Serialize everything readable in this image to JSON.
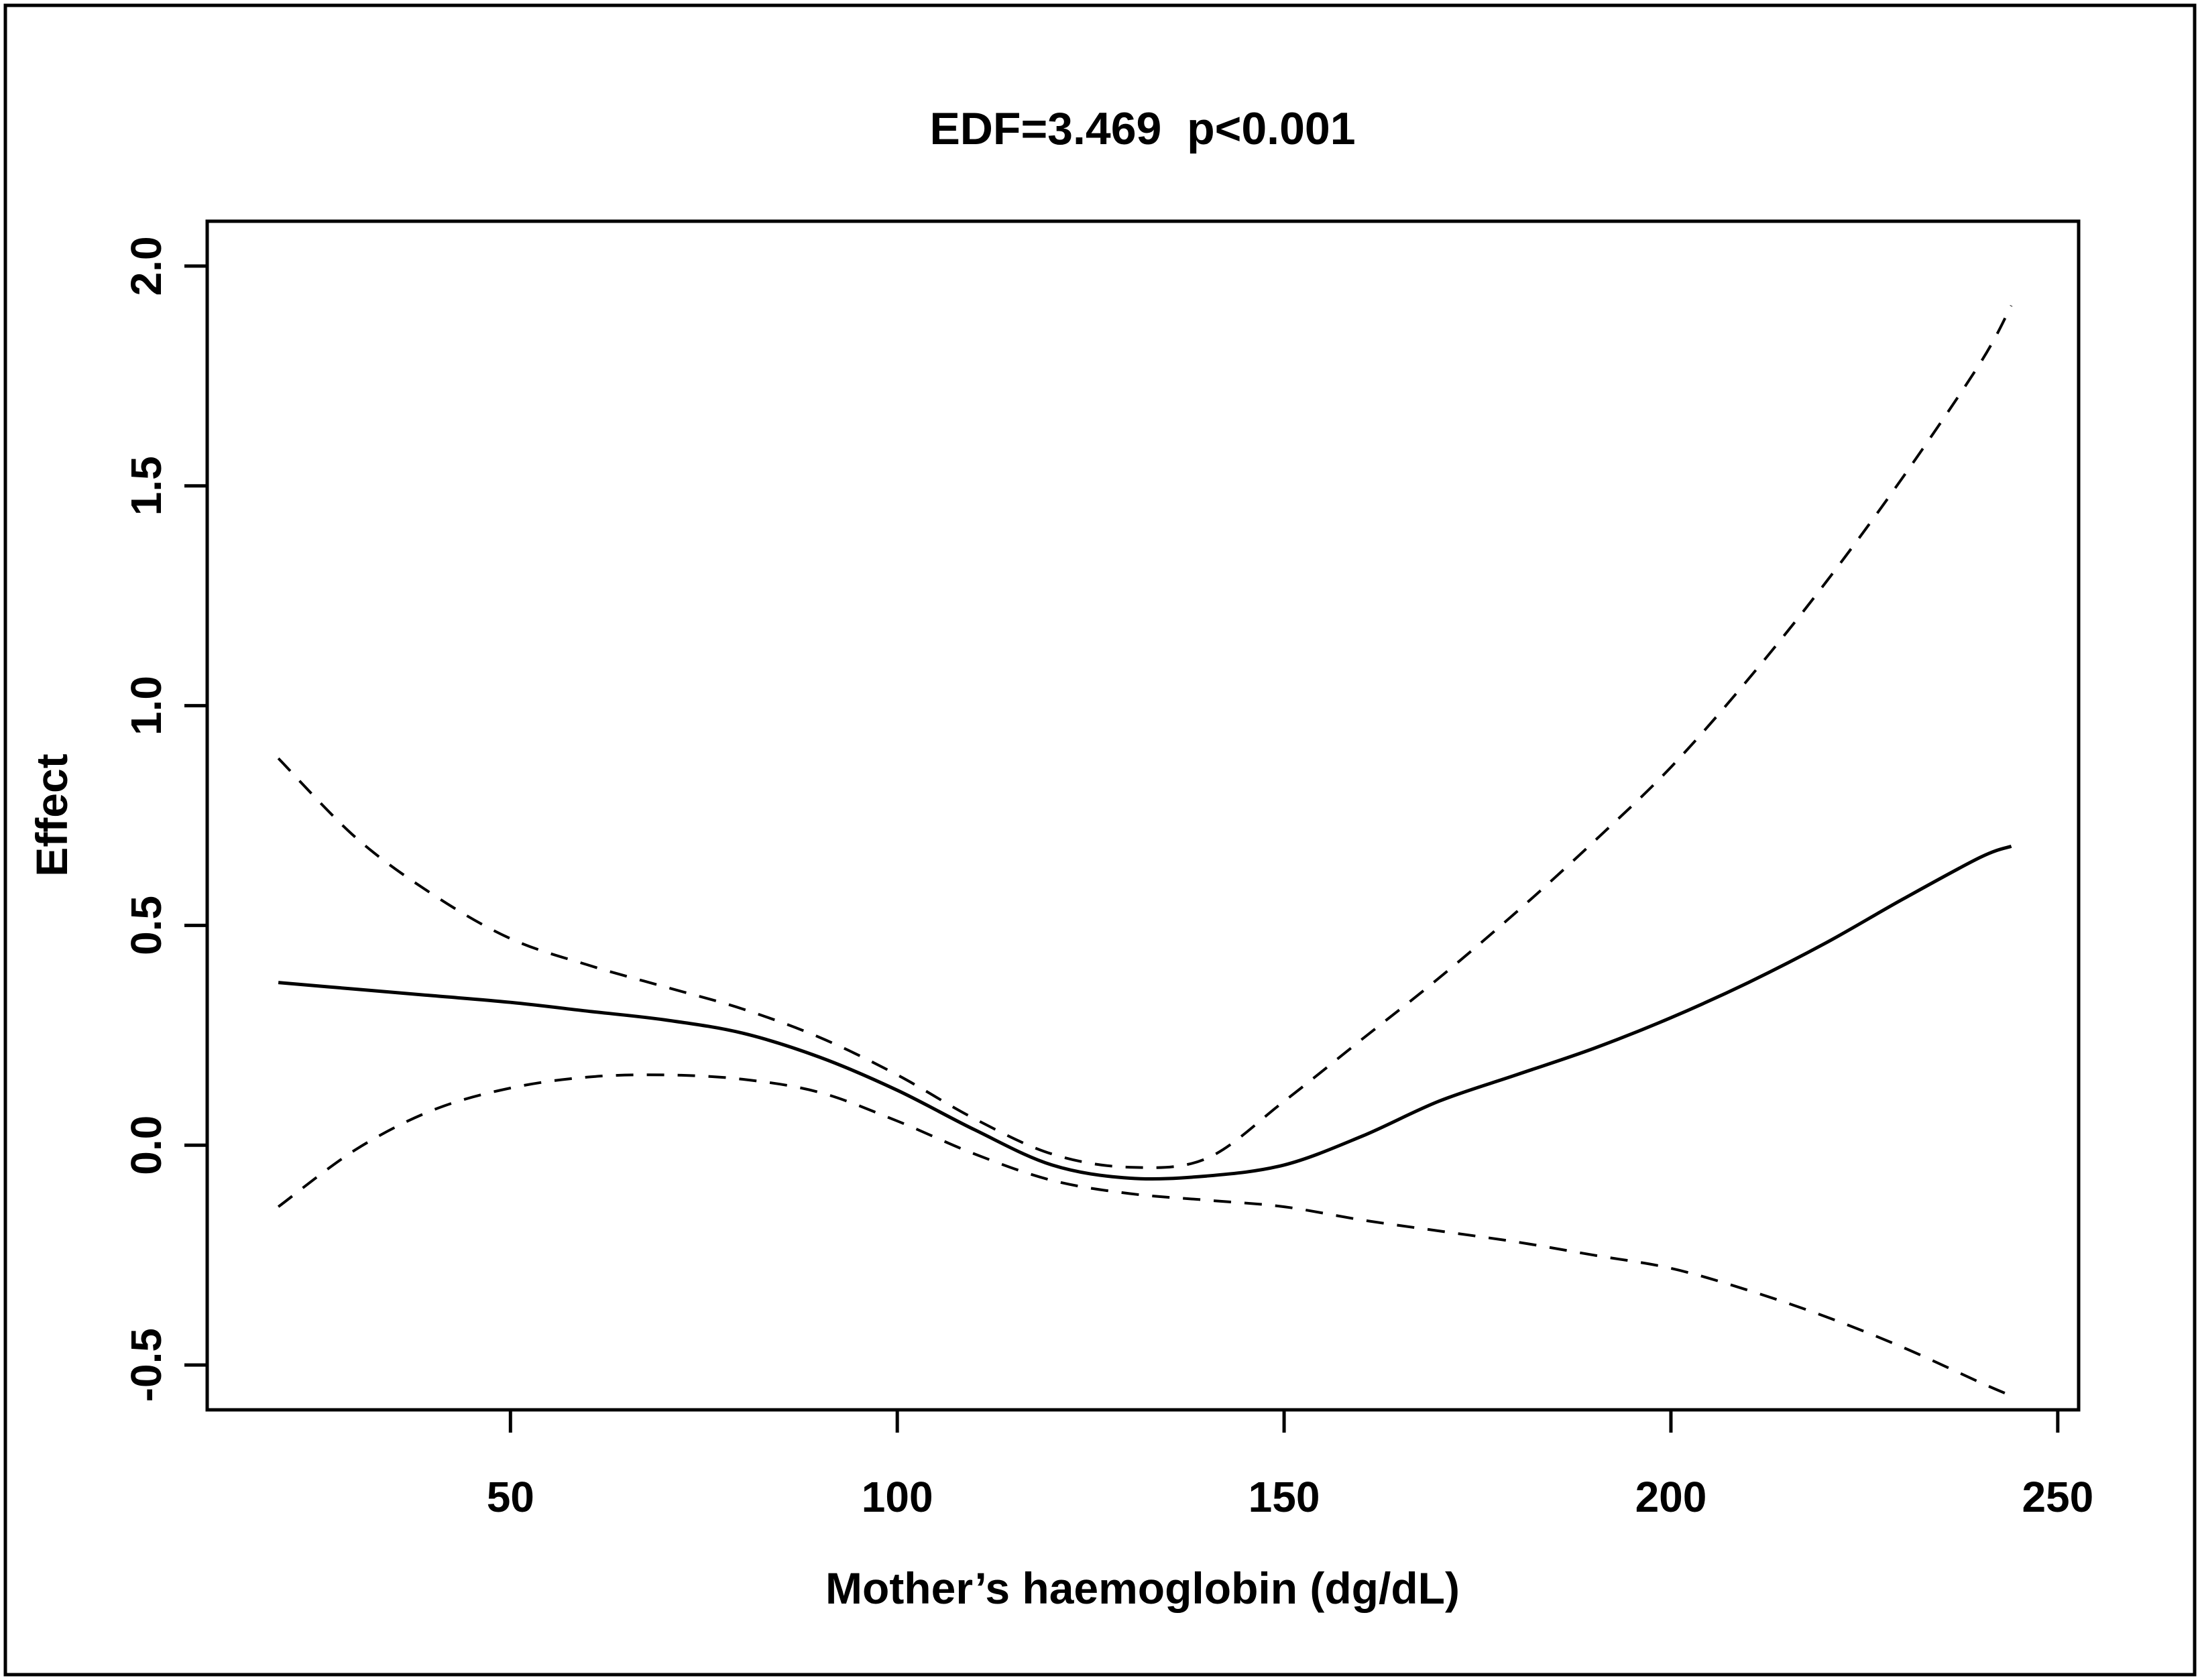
{
  "figure": {
    "background": "#ffffff",
    "frame_color": "#000000",
    "axis_color": "#000000",
    "curve_color": "#000000"
  },
  "chart_data": {
    "type": "line",
    "title": "EDF=3.469  p<0.001",
    "xlabel": "Mother’s haemoglobin (dg/dL)",
    "ylabel": "Effect",
    "xlim": [
      10.8,
      252.7
    ],
    "ylim": [
      -0.602,
      2.102
    ],
    "grid": false,
    "legend_position": "none",
    "x_ticks": [
      50,
      100,
      150,
      200,
      250
    ],
    "x_tick_labels": [
      "50",
      "100",
      "150",
      "200",
      "250"
    ],
    "y_ticks": [
      -0.5,
      0.0,
      0.5,
      1.0,
      1.5,
      2.0
    ],
    "y_tick_labels": [
      "-0.5",
      "0.0",
      "0.5",
      "1.0",
      "1.5",
      "2.0"
    ],
    "x": [
      20,
      30,
      40,
      50,
      60,
      70,
      80,
      90,
      100,
      110,
      120,
      130,
      140,
      150,
      160,
      170,
      180,
      190,
      200,
      210,
      220,
      230,
      240,
      244
    ],
    "series": [
      {
        "name": "smooth_estimate",
        "line_style": "solid",
        "values": [
          0.37,
          0.355,
          0.34,
          0.325,
          0.305,
          0.285,
          0.255,
          0.2,
          0.125,
          0.035,
          -0.045,
          -0.075,
          -0.07,
          -0.045,
          0.02,
          0.1,
          0.16,
          0.22,
          0.29,
          0.37,
          0.46,
          0.56,
          0.655,
          0.68
        ]
      },
      {
        "name": "upper_confidence_band",
        "line_style": "dashed",
        "values": [
          0.88,
          0.7,
          0.57,
          0.47,
          0.41,
          0.36,
          0.31,
          0.245,
          0.16,
          0.06,
          -0.02,
          -0.05,
          -0.03,
          0.1,
          0.24,
          0.38,
          0.53,
          0.69,
          0.86,
          1.06,
          1.28,
          1.52,
          1.78,
          1.91
        ]
      },
      {
        "name": "lower_confidence_band",
        "line_style": "dashed",
        "values": [
          -0.14,
          -0.01,
          0.08,
          0.13,
          0.155,
          0.16,
          0.15,
          0.12,
          0.055,
          -0.02,
          -0.08,
          -0.11,
          -0.125,
          -0.14,
          -0.17,
          -0.195,
          -0.22,
          -0.25,
          -0.28,
          -0.33,
          -0.39,
          -0.46,
          -0.54,
          -0.57
        ]
      }
    ]
  }
}
